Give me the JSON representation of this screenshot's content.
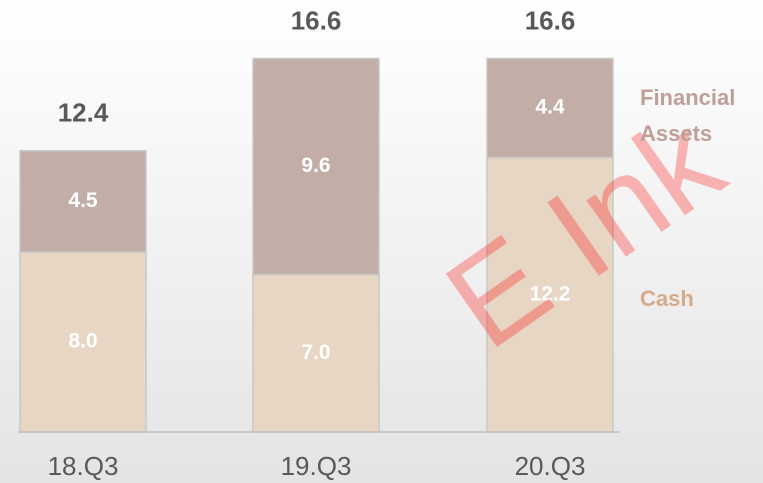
{
  "chart_data": {
    "type": "stacked_bar",
    "categories": [
      "18.Q3",
      "19.Q3",
      "20.Q3"
    ],
    "series": [
      {
        "name": "Cash",
        "color": "#e8d6c5",
        "values": [
          8.0,
          7.0,
          12.2
        ],
        "value_labels": [
          "8.0",
          "7.0",
          "12.2"
        ]
      },
      {
        "name": "Financial Assets",
        "color": "#c3ada7",
        "values": [
          4.5,
          9.6,
          4.4
        ],
        "value_labels": [
          "4.5",
          "9.6",
          "4.4"
        ]
      }
    ],
    "totals": [
      12.4,
      16.6,
      16.6
    ],
    "ylim": [
      0,
      19.2
    ],
    "watermark": "E Ink"
  }
}
